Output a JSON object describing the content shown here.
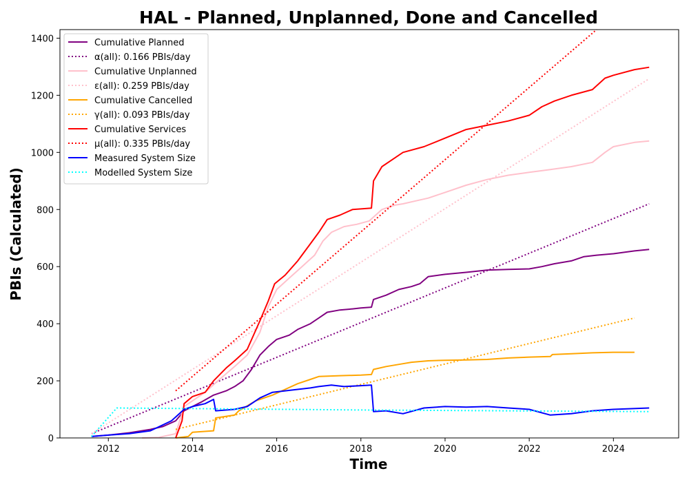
{
  "chart_data": {
    "type": "line",
    "title": "HAL - Planned, Unplanned, Done  and Cancelled",
    "xlabel": "Time",
    "ylabel": "PBIs (Calculated)",
    "xlim": [
      2010.85,
      2025.55
    ],
    "ylim": [
      0,
      1430
    ],
    "xticks": [
      2012,
      2014,
      2016,
      2018,
      2020,
      2022,
      2024
    ],
    "yticks": [
      0,
      200,
      400,
      600,
      800,
      1000,
      1200,
      1400
    ],
    "grid": false,
    "legend_position": "upper-left",
    "series": [
      {
        "name": "Cumulative Planned",
        "color": "#800080",
        "style": "solid",
        "x": [
          2011.6,
          2012.0,
          2012.5,
          2013.0,
          2013.3,
          2013.6,
          2013.8,
          2014.0,
          2014.2,
          2014.5,
          2014.8,
          2015.0,
          2015.2,
          2015.4,
          2015.6,
          2015.8,
          2016.0,
          2016.3,
          2016.5,
          2016.8,
          2017.0,
          2017.2,
          2017.5,
          2017.8,
          2018.0,
          2018.25,
          2018.3,
          2018.6,
          2018.9,
          2019.2,
          2019.4,
          2019.6,
          2020.0,
          2020.5,
          2021.0,
          2021.5,
          2022.0,
          2022.3,
          2022.6,
          2023.0,
          2023.3,
          2023.6,
          2024.0,
          2024.5,
          2024.85
        ],
        "y": [
          5,
          10,
          18,
          30,
          40,
          60,
          95,
          110,
          125,
          150,
          165,
          180,
          200,
          240,
          290,
          320,
          345,
          360,
          380,
          400,
          420,
          440,
          448,
          452,
          455,
          458,
          485,
          500,
          520,
          530,
          540,
          565,
          573,
          580,
          588,
          590,
          592,
          600,
          610,
          620,
          635,
          640,
          645,
          655,
          660
        ]
      },
      {
        "name": "α(all): 0.166 PBIs/day",
        "color": "#800080",
        "style": "dotted",
        "x": [
          2011.6,
          2024.85
        ],
        "y": [
          15,
          820
        ]
      },
      {
        "name": "Cumulative Unplanned",
        "color": "#ffc0cb",
        "style": "solid",
        "x": [
          2012.8,
          2013.2,
          2013.6,
          2013.8,
          2014.0,
          2014.3,
          2014.6,
          2015.0,
          2015.3,
          2015.6,
          2015.8,
          2016.0,
          2016.3,
          2016.6,
          2016.9,
          2017.1,
          2017.3,
          2017.6,
          2017.9,
          2018.2,
          2018.5,
          2018.8,
          2019.0,
          2019.3,
          2019.6,
          2020.0,
          2020.5,
          2021.0,
          2021.5,
          2022.0,
          2022.5,
          2023.0,
          2023.5,
          2023.8,
          2024.0,
          2024.5,
          2024.85
        ],
        "y": [
          0,
          2,
          15,
          110,
          130,
          160,
          200,
          250,
          290,
          370,
          460,
          520,
          560,
          600,
          640,
          690,
          720,
          740,
          748,
          760,
          800,
          815,
          820,
          830,
          840,
          860,
          885,
          905,
          920,
          930,
          940,
          950,
          965,
          1000,
          1020,
          1035,
          1040
        ]
      },
      {
        "name": "ε(all): 0.259 PBIs/day",
        "color": "#ffc0cb",
        "style": "dotted",
        "x": [
          2011.6,
          2024.85
        ],
        "y": [
          15,
          1258
        ]
      },
      {
        "name": "Cumulative Cancelled",
        "color": "#ffa500",
        "style": "solid",
        "x": [
          2013.6,
          2013.9,
          2014.0,
          2014.5,
          2014.55,
          2015.0,
          2015.1,
          2015.5,
          2015.9,
          2016.2,
          2016.5,
          2016.8,
          2017.0,
          2017.5,
          2018.0,
          2018.25,
          2018.3,
          2018.6,
          2019.0,
          2019.2,
          2019.6,
          2020.0,
          2020.5,
          2021.0,
          2021.5,
          2022.0,
          2022.5,
          2022.55,
          2023.0,
          2023.5,
          2024.0,
          2024.5
        ],
        "y": [
          0,
          5,
          20,
          25,
          70,
          80,
          95,
          130,
          150,
          170,
          190,
          205,
          215,
          218,
          220,
          222,
          240,
          250,
          260,
          265,
          270,
          272,
          273,
          275,
          280,
          283,
          285,
          292,
          295,
          298,
          300,
          300
        ]
      },
      {
        "name": "γ(all): 0.093 PBIs/day",
        "color": "#ffa500",
        "style": "dotted",
        "x": [
          2013.6,
          2024.5
        ],
        "y": [
          30,
          420
        ]
      },
      {
        "name": "Cumulative Services",
        "color": "#ff0000",
        "style": "solid",
        "x": [
          2013.6,
          2013.75,
          2013.8,
          2014.0,
          2014.3,
          2014.5,
          2014.8,
          2015.0,
          2015.3,
          2015.6,
          2015.8,
          2015.95,
          2016.2,
          2016.5,
          2016.8,
          2017.0,
          2017.2,
          2017.5,
          2017.8,
          2018.0,
          2018.25,
          2018.3,
          2018.5,
          2018.8,
          2019.0,
          2019.5,
          2020.0,
          2020.5,
          2021.0,
          2021.5,
          2022.0,
          2022.3,
          2022.6,
          2023.0,
          2023.5,
          2023.8,
          2024.0,
          2024.5,
          2024.85
        ],
        "y": [
          0,
          60,
          120,
          145,
          160,
          200,
          245,
          270,
          310,
          410,
          480,
          540,
          570,
          620,
          680,
          720,
          765,
          780,
          800,
          802,
          805,
          900,
          950,
          980,
          1000,
          1020,
          1050,
          1080,
          1095,
          1110,
          1130,
          1160,
          1180,
          1200,
          1220,
          1260,
          1270,
          1290,
          1298
        ]
      },
      {
        "name": "μ(all): 0.335 PBIs/day",
        "color": "#ff0000",
        "style": "dotted",
        "x": [
          2013.6,
          2023.6
        ],
        "y": [
          165,
          1430
        ]
      },
      {
        "name": "Measured System Size",
        "color": "#0000ff",
        "style": "solid",
        "x": [
          2011.6,
          2012.0,
          2012.5,
          2013.0,
          2013.5,
          2013.8,
          2014.0,
          2014.3,
          2014.5,
          2014.55,
          2015.0,
          2015.3,
          2015.6,
          2015.9,
          2016.2,
          2016.5,
          2016.8,
          2017.0,
          2017.3,
          2017.6,
          2018.0,
          2018.25,
          2018.3,
          2018.6,
          2019.0,
          2019.5,
          2020.0,
          2020.5,
          2021.0,
          2021.5,
          2022.0,
          2022.5,
          2023.0,
          2023.5,
          2024.0,
          2024.85
        ],
        "y": [
          5,
          10,
          15,
          25,
          60,
          100,
          110,
          120,
          135,
          95,
          100,
          110,
          140,
          160,
          165,
          170,
          175,
          180,
          185,
          180,
          183,
          185,
          92,
          95,
          85,
          105,
          110,
          108,
          110,
          105,
          100,
          80,
          85,
          95,
          100,
          105
        ]
      },
      {
        "name": "Modelled System Size",
        "color": "#00ffff",
        "style": "dotted",
        "x": [
          2011.6,
          2012.2,
          2018.0,
          2024.85
        ],
        "y": [
          5,
          105,
          98,
          92
        ]
      }
    ]
  }
}
